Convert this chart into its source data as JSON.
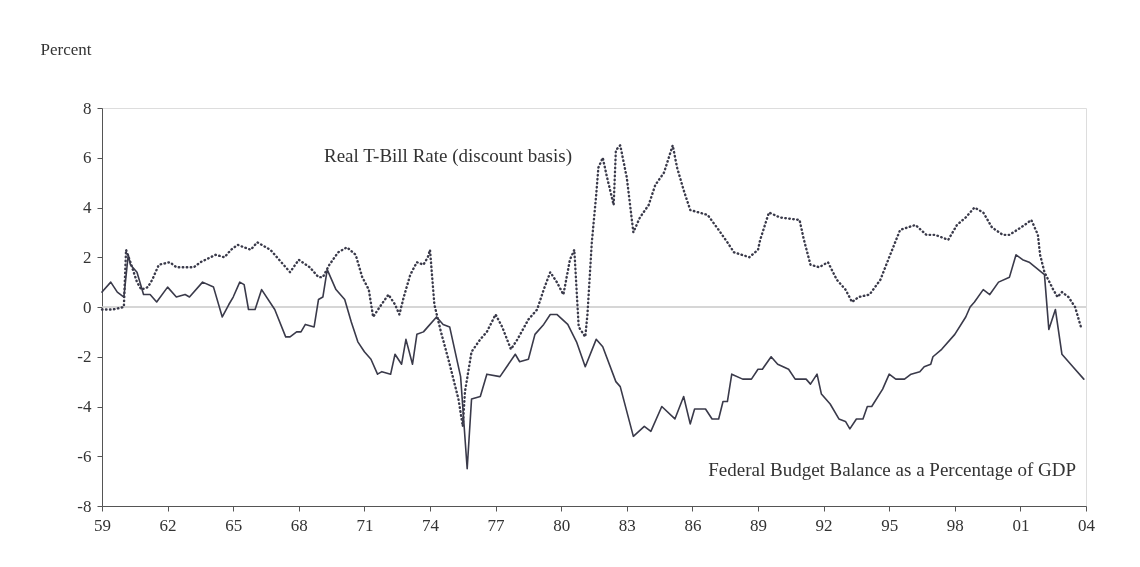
{
  "chart_data": {
    "type": "line",
    "ylabel": "Percent",
    "xlim": [
      1959,
      2004
    ],
    "xticks": [
      {
        "value": 1959,
        "label": "59"
      },
      {
        "value": 1962,
        "label": "62"
      },
      {
        "value": 1965,
        "label": "65"
      },
      {
        "value": 1968,
        "label": "68"
      },
      {
        "value": 1971,
        "label": "71"
      },
      {
        "value": 1974,
        "label": "74"
      },
      {
        "value": 1977,
        "label": "77"
      },
      {
        "value": 1980,
        "label": "80"
      },
      {
        "value": 1983,
        "label": "83"
      },
      {
        "value": 1986,
        "label": "86"
      },
      {
        "value": 1989,
        "label": "89"
      },
      {
        "value": 1992,
        "label": "92"
      },
      {
        "value": 1995,
        "label": "95"
      },
      {
        "value": 1998,
        "label": "98"
      },
      {
        "value": 2001,
        "label": "01"
      },
      {
        "value": 2004,
        "label": "04"
      }
    ],
    "ylim": [
      -8,
      8
    ],
    "yticks": [
      -8,
      -6,
      -4,
      -2,
      0,
      2,
      4,
      6,
      8
    ],
    "grid": false,
    "legend": false,
    "ref_lines": [
      {
        "axis": "y",
        "value": 0,
        "color": "#c8c8c8"
      }
    ],
    "series": [
      {
        "name": "Real T-Bill Rate (discount basis)",
        "color": "#3a3a4a",
        "line_style": "dotted",
        "x": [
          1959.0,
          1959.5,
          1960.0,
          1960.1,
          1960.3,
          1960.6,
          1960.8,
          1961.1,
          1961.3,
          1961.6,
          1962.1,
          1962.4,
          1963.2,
          1963.5,
          1964.2,
          1964.6,
          1964.9,
          1965.2,
          1965.8,
          1966.1,
          1966.7,
          1967.3,
          1967.6,
          1968.0,
          1968.5,
          1968.9,
          1969.1,
          1969.4,
          1969.8,
          1970.2,
          1970.6,
          1970.9,
          1971.2,
          1971.4,
          1971.7,
          1972.1,
          1972.4,
          1972.6,
          1972.8,
          1973.1,
          1973.4,
          1973.7,
          1973.9,
          1974.0,
          1974.2,
          1974.5,
          1974.9,
          1975.3,
          1975.5,
          1975.6,
          1975.9,
          1976.3,
          1976.6,
          1977.0,
          1977.3,
          1977.7,
          1978.0,
          1978.5,
          1978.9,
          1979.2,
          1979.5,
          1979.8,
          1980.1,
          1980.4,
          1980.6,
          1980.8,
          1981.1,
          1981.2,
          1981.4,
          1981.6,
          1981.7,
          1981.9,
          1982.1,
          1982.4,
          1982.5,
          1982.7,
          1983.0,
          1983.3,
          1983.6,
          1984.0,
          1984.3,
          1984.7,
          1985.1,
          1985.3,
          1985.6,
          1985.9,
          1986.7,
          1987.2,
          1987.6,
          1987.9,
          1988.6,
          1989.0,
          1989.1,
          1989.5,
          1990.0,
          1990.9,
          1991.1,
          1991.4,
          1991.8,
          1992.2,
          1992.6,
          1993.0,
          1993.3,
          1993.6,
          1994.1,
          1994.6,
          1995.0,
          1995.5,
          1996.2,
          1996.7,
          1997.1,
          1997.7,
          1998.1,
          1998.5,
          1998.9,
          1999.3,
          1999.7,
          2000.2,
          2000.5,
          2001.2,
          2001.5,
          2001.8,
          2001.9,
          2002.1,
          2002.5,
          2002.7,
          2002.9,
          2003.2,
          2003.5,
          2003.8
        ],
        "values": [
          -0.1,
          -0.1,
          0.0,
          2.3,
          1.8,
          1.0,
          0.7,
          0.8,
          1.1,
          1.7,
          1.8,
          1.6,
          1.6,
          1.8,
          2.1,
          2.0,
          2.3,
          2.5,
          2.3,
          2.6,
          2.3,
          1.7,
          1.4,
          1.9,
          1.6,
          1.2,
          1.2,
          1.7,
          2.2,
          2.4,
          2.1,
          1.2,
          0.7,
          -0.4,
          0.0,
          0.5,
          0.1,
          -0.3,
          0.4,
          1.3,
          1.8,
          1.7,
          2.0,
          2.3,
          0.1,
          -1.0,
          -2.3,
          -3.7,
          -4.8,
          -3.4,
          -1.8,
          -1.3,
          -1.0,
          -0.3,
          -0.8,
          -1.7,
          -1.3,
          -0.5,
          -0.1,
          0.7,
          1.4,
          1.0,
          0.5,
          1.9,
          2.3,
          -0.8,
          -1.2,
          -0.3,
          2.6,
          4.5,
          5.6,
          6.0,
          5.2,
          4.1,
          6.3,
          6.5,
          5.2,
          3.0,
          3.6,
          4.1,
          4.9,
          5.4,
          6.5,
          5.6,
          4.7,
          3.9,
          3.7,
          3.1,
          2.6,
          2.2,
          2.0,
          2.3,
          2.7,
          3.8,
          3.6,
          3.5,
          2.7,
          1.7,
          1.6,
          1.8,
          1.1,
          0.7,
          0.2,
          0.4,
          0.5,
          1.1,
          2.0,
          3.1,
          3.3,
          2.9,
          2.9,
          2.7,
          3.3,
          3.6,
          4.0,
          3.8,
          3.2,
          2.9,
          2.9,
          3.3,
          3.5,
          2.9,
          2.1,
          1.4,
          0.7,
          0.4,
          0.6,
          0.4,
          0.0,
          -0.9
        ]
      },
      {
        "name": "Federal Budget Balance as a Percentage of GDP",
        "color": "#3a3a4a",
        "line_style": "solid",
        "x": [
          1959.0,
          1959.4,
          1959.7,
          1960.0,
          1960.2,
          1960.3,
          1960.6,
          1960.9,
          1961.2,
          1961.5,
          1962.0,
          1962.4,
          1962.8,
          1963.0,
          1963.6,
          1964.1,
          1964.5,
          1964.8,
          1965.0,
          1965.3,
          1965.5,
          1965.7,
          1966.0,
          1966.3,
          1966.9,
          1967.4,
          1967.6,
          1967.9,
          1968.1,
          1968.3,
          1968.7,
          1968.9,
          1969.1,
          1969.3,
          1969.7,
          1970.1,
          1970.4,
          1970.7,
          1971.0,
          1971.3,
          1971.6,
          1971.8,
          1972.2,
          1972.4,
          1972.7,
          1972.9,
          1973.2,
          1973.4,
          1973.7,
          1973.9,
          1974.3,
          1974.6,
          1974.9,
          1975.4,
          1975.7,
          1975.9,
          1976.3,
          1976.6,
          1977.2,
          1977.9,
          1978.1,
          1978.5,
          1978.8,
          1979.2,
          1979.5,
          1979.8,
          1980.3,
          1980.7,
          1981.1,
          1981.6,
          1981.9,
          1982.5,
          1982.7,
          1983.3,
          1983.8,
          1984.1,
          1984.6,
          1985.2,
          1985.6,
          1985.9,
          1986.1,
          1986.6,
          1986.9,
          1987.2,
          1987.4,
          1987.6,
          1987.8,
          1988.3,
          1988.7,
          1989.0,
          1989.2,
          1989.6,
          1989.9,
          1990.4,
          1990.7,
          1991.0,
          1991.2,
          1991.4,
          1991.7,
          1991.9,
          1992.3,
          1992.7,
          1993.0,
          1993.2,
          1993.5,
          1993.8,
          1994.0,
          1994.2,
          1994.7,
          1995.0,
          1995.3,
          1995.7,
          1996.0,
          1996.4,
          1996.6,
          1996.9,
          1997.0,
          1997.4,
          1998.0,
          1998.5,
          1998.7,
          1998.9,
          1999.3,
          1999.6,
          2000.0,
          2000.5,
          2000.8,
          2001.1,
          2001.4,
          2002.1,
          2002.3,
          2002.6,
          2002.9,
          2003.2,
          2003.4,
          2003.9
        ],
        "values": [
          0.6,
          1.0,
          0.6,
          0.4,
          2.1,
          1.7,
          1.4,
          0.5,
          0.5,
          0.2,
          0.8,
          0.4,
          0.5,
          0.4,
          1.0,
          0.8,
          -0.4,
          0.1,
          0.4,
          1.0,
          0.9,
          -0.1,
          -0.1,
          0.7,
          -0.1,
          -1.2,
          -1.2,
          -1.0,
          -1.0,
          -0.7,
          -0.8,
          0.3,
          0.4,
          1.5,
          0.7,
          0.3,
          -0.6,
          -1.4,
          -1.8,
          -2.1,
          -2.7,
          -2.6,
          -2.7,
          -1.9,
          -2.3,
          -1.3,
          -2.3,
          -1.1,
          -1.0,
          -0.8,
          -0.4,
          -0.7,
          -0.8,
          -2.8,
          -6.5,
          -3.7,
          -3.6,
          -2.7,
          -2.8,
          -1.9,
          -2.2,
          -2.1,
          -1.1,
          -0.7,
          -0.3,
          -0.3,
          -0.7,
          -1.4,
          -2.4,
          -1.3,
          -1.6,
          -3.0,
          -3.2,
          -5.2,
          -4.8,
          -5.0,
          -4.0,
          -4.5,
          -3.6,
          -4.7,
          -4.1,
          -4.1,
          -4.5,
          -4.5,
          -3.8,
          -3.8,
          -2.7,
          -2.9,
          -2.9,
          -2.5,
          -2.5,
          -2.0,
          -2.3,
          -2.5,
          -2.9,
          -2.9,
          -2.9,
          -3.1,
          -2.7,
          -3.5,
          -3.9,
          -4.5,
          -4.6,
          -4.9,
          -4.5,
          -4.5,
          -4.0,
          -4.0,
          -3.3,
          -2.7,
          -2.9,
          -2.9,
          -2.7,
          -2.6,
          -2.4,
          -2.3,
          -2.0,
          -1.7,
          -1.1,
          -0.4,
          0.0,
          0.2,
          0.7,
          0.5,
          1.0,
          1.2,
          2.1,
          1.9,
          1.8,
          1.3,
          -0.9,
          -0.1,
          -1.9,
          -2.2,
          -2.4,
          -2.9
        ]
      }
    ]
  }
}
